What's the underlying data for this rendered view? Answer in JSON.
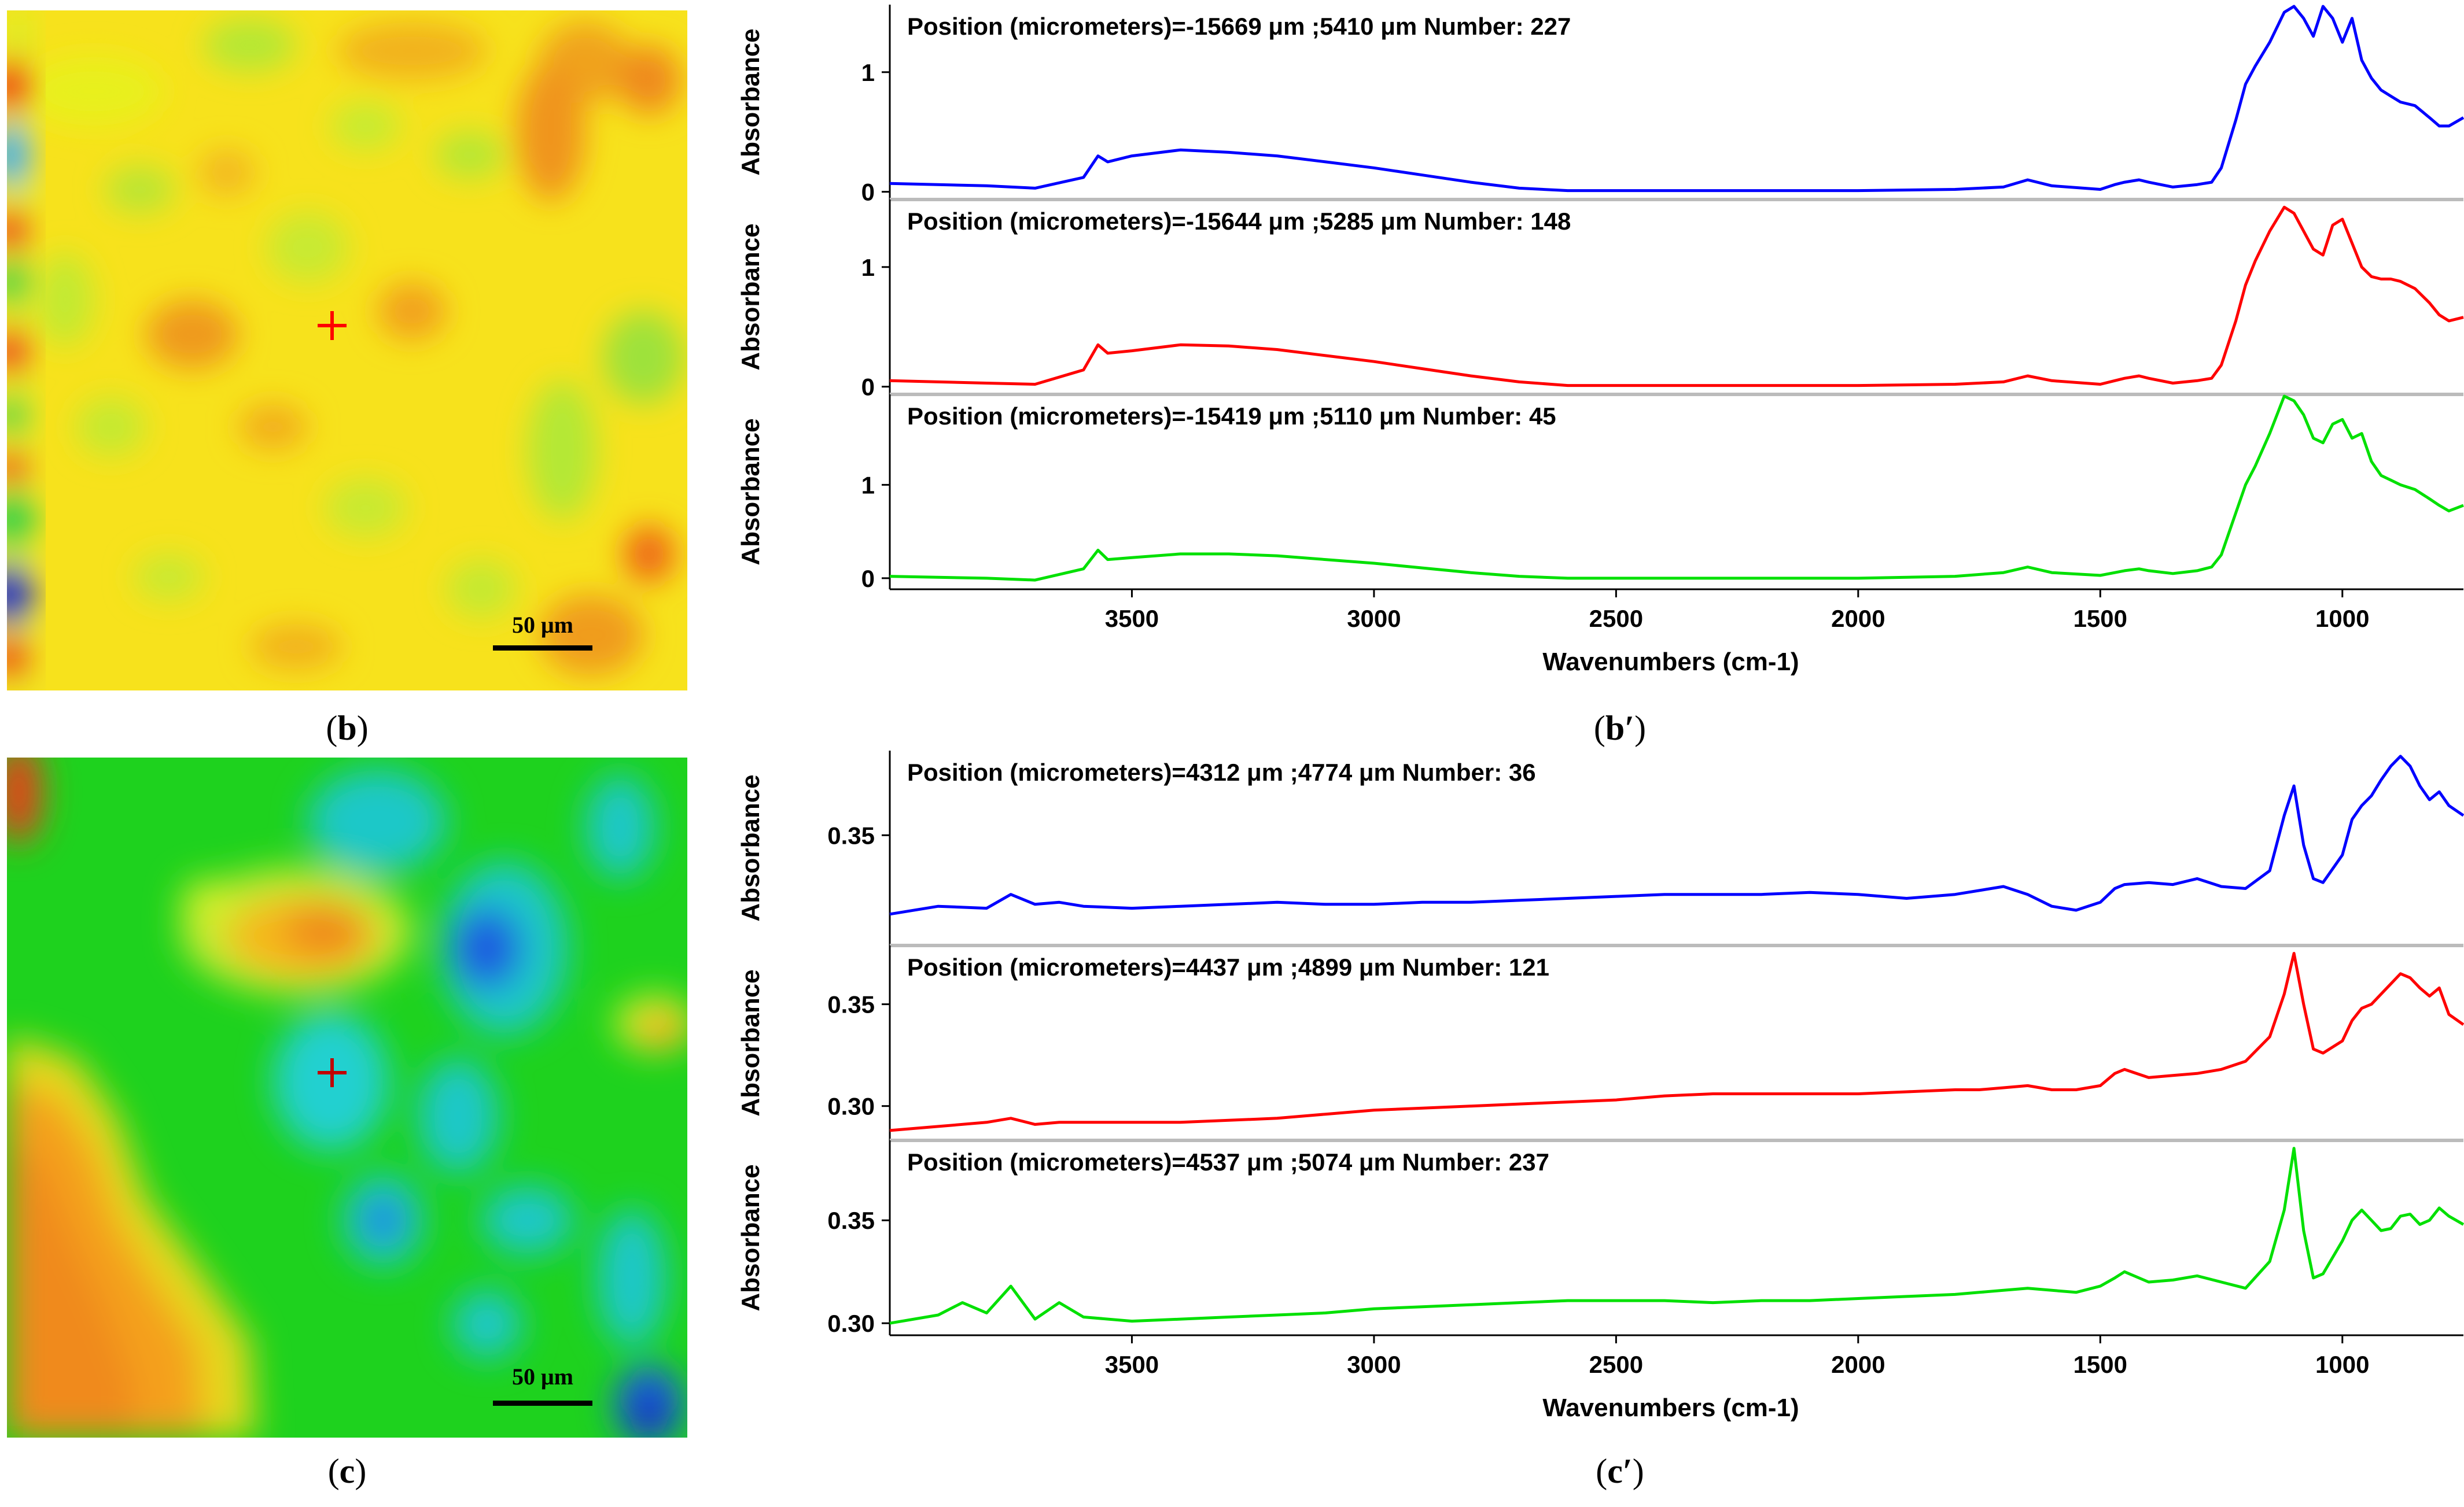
{
  "panel_labels": {
    "b_open": "(",
    "b_letter": "b",
    "b_close": ")",
    "bp_open": "(",
    "bp_letter": "b′",
    "bp_close": ")",
    "c_open": "(",
    "c_letter": "c",
    "c_close": ")",
    "cp_open": "(",
    "cp_letter": "c′",
    "cp_close": ")"
  },
  "maps": [
    {
      "id": "b",
      "scale_bar_label": "50 μm",
      "colormap": "jet",
      "marker_color": "#ff0000"
    },
    {
      "id": "c",
      "scale_bar_label": "50 μm",
      "colormap": "jet",
      "marker_color": "#c00000"
    }
  ],
  "chart_data": [
    {
      "id": "b-prime",
      "type": "line",
      "xlabel": "Wavenumbers (cm-1)",
      "xlim": [
        4000,
        750
      ],
      "xticks": [
        3500,
        3000,
        2500,
        2000,
        1500,
        1000
      ],
      "subplots": [
        {
          "ylabel": "Absorbance",
          "title": "Position (micrometers)=-15669 μm ;5410 μm  Number: 227",
          "color": "#0000ff",
          "ylim": [
            -0.05,
            1.55
          ],
          "yticks": [
            0,
            1
          ],
          "x": [
            4000,
            3800,
            3700,
            3600,
            3570,
            3550,
            3500,
            3400,
            3300,
            3200,
            3100,
            3000,
            2900,
            2800,
            2700,
            2600,
            2400,
            2200,
            2000,
            1800,
            1700,
            1650,
            1600,
            1500,
            1470,
            1450,
            1420,
            1400,
            1350,
            1300,
            1270,
            1250,
            1220,
            1200,
            1180,
            1150,
            1120,
            1100,
            1080,
            1060,
            1040,
            1020,
            1000,
            980,
            960,
            940,
            920,
            900,
            880,
            850,
            820,
            800,
            780,
            750
          ],
          "y": [
            0.07,
            0.05,
            0.03,
            0.12,
            0.3,
            0.25,
            0.3,
            0.35,
            0.33,
            0.3,
            0.25,
            0.2,
            0.14,
            0.08,
            0.03,
            0.01,
            0.01,
            0.01,
            0.01,
            0.02,
            0.04,
            0.1,
            0.05,
            0.02,
            0.06,
            0.08,
            0.1,
            0.08,
            0.04,
            0.06,
            0.08,
            0.2,
            0.6,
            0.9,
            1.05,
            1.25,
            1.5,
            1.55,
            1.45,
            1.3,
            1.55,
            1.45,
            1.25,
            1.45,
            1.1,
            0.95,
            0.85,
            0.8,
            0.75,
            0.72,
            0.62,
            0.55,
            0.55,
            0.62
          ]
        },
        {
          "ylabel": "Absorbance",
          "title": "Position (micrometers)=-15644 μm ;5285 μm  Number: 148",
          "color": "#ff0000",
          "ylim": [
            -0.05,
            1.55
          ],
          "yticks": [
            0,
            1
          ],
          "x": [
            4000,
            3800,
            3700,
            3600,
            3570,
            3550,
            3500,
            3400,
            3300,
            3200,
            3100,
            3000,
            2900,
            2800,
            2700,
            2600,
            2400,
            2200,
            2000,
            1800,
            1700,
            1650,
            1600,
            1500,
            1470,
            1450,
            1420,
            1400,
            1350,
            1300,
            1270,
            1250,
            1220,
            1200,
            1180,
            1150,
            1120,
            1100,
            1080,
            1060,
            1040,
            1020,
            1000,
            980,
            960,
            940,
            920,
            900,
            880,
            850,
            820,
            800,
            780,
            750
          ],
          "y": [
            0.05,
            0.03,
            0.02,
            0.14,
            0.35,
            0.28,
            0.3,
            0.35,
            0.34,
            0.31,
            0.26,
            0.21,
            0.15,
            0.09,
            0.04,
            0.01,
            0.01,
            0.01,
            0.01,
            0.02,
            0.04,
            0.09,
            0.05,
            0.02,
            0.05,
            0.07,
            0.09,
            0.07,
            0.03,
            0.05,
            0.07,
            0.18,
            0.55,
            0.85,
            1.05,
            1.3,
            1.5,
            1.45,
            1.3,
            1.15,
            1.1,
            1.35,
            1.4,
            1.2,
            1.0,
            0.92,
            0.9,
            0.9,
            0.88,
            0.82,
            0.7,
            0.6,
            0.55,
            0.58
          ]
        },
        {
          "ylabel": "Absorbance",
          "title": "Position (micrometers)=-15419 μm ;5110 μm  Number: 45",
          "color": "#00e000",
          "ylim": [
            -0.1,
            1.95
          ],
          "yticks": [
            0,
            1
          ],
          "x": [
            4000,
            3800,
            3700,
            3600,
            3570,
            3550,
            3500,
            3400,
            3300,
            3200,
            3100,
            3000,
            2900,
            2800,
            2700,
            2600,
            2400,
            2200,
            2000,
            1800,
            1700,
            1650,
            1600,
            1500,
            1470,
            1450,
            1420,
            1400,
            1350,
            1300,
            1270,
            1250,
            1220,
            1200,
            1180,
            1150,
            1120,
            1100,
            1080,
            1060,
            1040,
            1020,
            1000,
            980,
            960,
            940,
            920,
            900,
            880,
            850,
            820,
            800,
            780,
            750
          ],
          "y": [
            0.02,
            0.0,
            -0.02,
            0.1,
            0.3,
            0.2,
            0.22,
            0.26,
            0.26,
            0.24,
            0.2,
            0.16,
            0.11,
            0.06,
            0.02,
            0.0,
            0.0,
            0.0,
            0.0,
            0.02,
            0.06,
            0.12,
            0.06,
            0.03,
            0.06,
            0.08,
            0.1,
            0.08,
            0.05,
            0.08,
            0.12,
            0.25,
            0.7,
            1.0,
            1.2,
            1.55,
            1.95,
            1.9,
            1.75,
            1.5,
            1.45,
            1.65,
            1.7,
            1.5,
            1.55,
            1.25,
            1.1,
            1.05,
            1.0,
            0.95,
            0.85,
            0.78,
            0.72,
            0.78
          ]
        }
      ]
    },
    {
      "id": "c-prime",
      "type": "line",
      "xlabel": "Wavenumbers (cm-1)",
      "xlim": [
        4000,
        750
      ],
      "xticks": [
        3500,
        3000,
        2500,
        2000,
        1500,
        1000
      ],
      "subplots": [
        {
          "ylabel": "Absorbance",
          "title": "Position (micrometers)=4312 μm ;4774 μm  Number: 36",
          "color": "#0000ff",
          "ylim": [
            0.295,
            0.392
          ],
          "yticks": [
            0.35
          ],
          "x": [
            4000,
            3900,
            3800,
            3750,
            3700,
            3650,
            3600,
            3500,
            3400,
            3300,
            3200,
            3100,
            3000,
            2900,
            2800,
            2700,
            2600,
            2500,
            2400,
            2300,
            2200,
            2100,
            2000,
            1900,
            1800,
            1750,
            1700,
            1650,
            1600,
            1550,
            1500,
            1470,
            1450,
            1400,
            1350,
            1300,
            1250,
            1200,
            1150,
            1120,
            1100,
            1080,
            1060,
            1040,
            1000,
            980,
            960,
            940,
            920,
            900,
            880,
            860,
            840,
            820,
            800,
            780,
            750
          ],
          "y": [
            0.31,
            0.314,
            0.313,
            0.32,
            0.315,
            0.316,
            0.314,
            0.313,
            0.314,
            0.315,
            0.316,
            0.315,
            0.315,
            0.316,
            0.316,
            0.317,
            0.318,
            0.319,
            0.32,
            0.32,
            0.32,
            0.321,
            0.32,
            0.318,
            0.32,
            0.322,
            0.324,
            0.32,
            0.314,
            0.312,
            0.316,
            0.323,
            0.325,
            0.326,
            0.325,
            0.328,
            0.324,
            0.323,
            0.332,
            0.36,
            0.375,
            0.345,
            0.328,
            0.326,
            0.34,
            0.358,
            0.365,
            0.37,
            0.378,
            0.385,
            0.39,
            0.385,
            0.375,
            0.368,
            0.372,
            0.365,
            0.36
          ]
        },
        {
          "ylabel": "Absorbance",
          "title": "Position (micrometers)=4437 μm ;4899 μm  Number: 121",
          "color": "#ff0000",
          "ylim": [
            0.284,
            0.378
          ],
          "yticks": [
            0.3,
            0.35
          ],
          "x": [
            4000,
            3900,
            3800,
            3750,
            3700,
            3650,
            3600,
            3500,
            3400,
            3300,
            3200,
            3100,
            3000,
            2900,
            2800,
            2700,
            2600,
            2500,
            2400,
            2300,
            2200,
            2100,
            2000,
            1900,
            1800,
            1750,
            1700,
            1650,
            1600,
            1550,
            1500,
            1470,
            1450,
            1400,
            1350,
            1300,
            1250,
            1200,
            1150,
            1120,
            1100,
            1080,
            1060,
            1040,
            1000,
            980,
            960,
            940,
            920,
            900,
            880,
            860,
            840,
            820,
            800,
            780,
            750
          ],
          "y": [
            0.288,
            0.29,
            0.292,
            0.294,
            0.291,
            0.292,
            0.292,
            0.292,
            0.292,
            0.293,
            0.294,
            0.296,
            0.298,
            0.299,
            0.3,
            0.301,
            0.302,
            0.303,
            0.305,
            0.306,
            0.306,
            0.306,
            0.306,
            0.307,
            0.308,
            0.308,
            0.309,
            0.31,
            0.308,
            0.308,
            0.31,
            0.316,
            0.318,
            0.314,
            0.315,
            0.316,
            0.318,
            0.322,
            0.334,
            0.355,
            0.375,
            0.35,
            0.328,
            0.326,
            0.332,
            0.342,
            0.348,
            0.35,
            0.355,
            0.36,
            0.365,
            0.363,
            0.358,
            0.354,
            0.358,
            0.345,
            0.34
          ]
        },
        {
          "ylabel": "Absorbance",
          "title": "Position (micrometers)=4537 μm ;5074 μm  Number: 237",
          "color": "#00e000",
          "ylim": [
            0.295,
            0.388
          ],
          "yticks": [
            0.3,
            0.35
          ],
          "x": [
            4000,
            3900,
            3850,
            3800,
            3750,
            3700,
            3650,
            3600,
            3500,
            3400,
            3300,
            3200,
            3100,
            3000,
            2900,
            2800,
            2700,
            2600,
            2500,
            2400,
            2300,
            2200,
            2100,
            2000,
            1900,
            1800,
            1750,
            1700,
            1650,
            1600,
            1550,
            1500,
            1470,
            1450,
            1400,
            1350,
            1300,
            1250,
            1200,
            1150,
            1120,
            1100,
            1080,
            1060,
            1040,
            1000,
            980,
            960,
            940,
            920,
            900,
            880,
            860,
            840,
            820,
            800,
            780,
            750
          ],
          "y": [
            0.3,
            0.304,
            0.31,
            0.305,
            0.318,
            0.302,
            0.31,
            0.303,
            0.301,
            0.302,
            0.303,
            0.304,
            0.305,
            0.307,
            0.308,
            0.309,
            0.31,
            0.311,
            0.311,
            0.311,
            0.31,
            0.311,
            0.311,
            0.312,
            0.313,
            0.314,
            0.315,
            0.316,
            0.317,
            0.316,
            0.315,
            0.318,
            0.322,
            0.325,
            0.32,
            0.321,
            0.323,
            0.32,
            0.317,
            0.33,
            0.355,
            0.385,
            0.345,
            0.322,
            0.324,
            0.34,
            0.35,
            0.355,
            0.35,
            0.345,
            0.346,
            0.352,
            0.353,
            0.348,
            0.35,
            0.356,
            0.352,
            0.348
          ]
        }
      ]
    }
  ]
}
